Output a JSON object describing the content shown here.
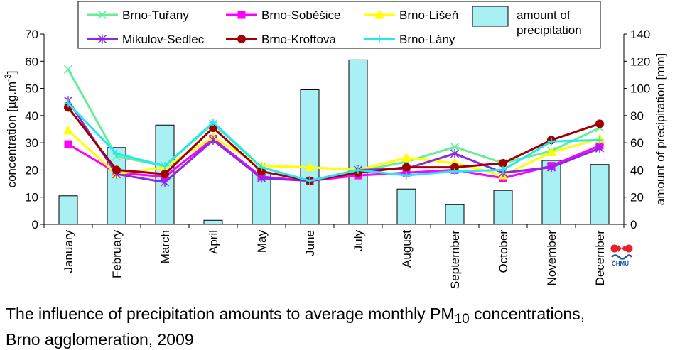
{
  "chart_data": {
    "type": "line",
    "categories": [
      "January",
      "February",
      "March",
      "April",
      "May",
      "June",
      "July",
      "August",
      "September",
      "October",
      "November",
      "December"
    ],
    "ylabel": "concentration  [µg.m-3]",
    "ylabel_parts": [
      "concentration  [µg.m",
      "-3",
      "]"
    ],
    "y2label": "amount of precipitation [mm]",
    "ylim": [
      0,
      70
    ],
    "y2lim": [
      0,
      140
    ],
    "yticks": [
      0,
      10,
      20,
      30,
      40,
      50,
      60,
      70
    ],
    "y2ticks": [
      0,
      20,
      40,
      60,
      80,
      100,
      120,
      140
    ],
    "bars": {
      "name": "amount of precipitation",
      "name_lines": [
        "amount of",
        "precipitation"
      ],
      "color": "#a8f0f4",
      "values": [
        21,
        56.5,
        73,
        3,
        38,
        99,
        121,
        26,
        14.5,
        25,
        47,
        44
      ]
    },
    "series": [
      {
        "name": "Brno-Tuřany",
        "color": "#66ee99",
        "marker": "x",
        "values": [
          57,
          25,
          21.5,
          37,
          21,
          16,
          19.5,
          23,
          28.5,
          22.5,
          27,
          35.5
        ]
      },
      {
        "name": "Brno-Soběšice",
        "color": "#ff00ff",
        "marker": "square",
        "values": [
          29.5,
          19,
          17.5,
          31.5,
          17.5,
          16,
          18,
          19,
          20,
          17,
          21.5,
          29
        ]
      },
      {
        "name": "Brno-Líšeň",
        "color": "#ffff00",
        "marker": "triangle",
        "values": [
          34.5,
          18.5,
          21,
          32,
          21.5,
          21,
          20,
          24.5,
          22.5,
          18,
          26.5,
          31.5
        ]
      },
      {
        "name": "Mikulov-Sedlec",
        "color": "#8a2be2",
        "marker": "star",
        "values": [
          45.5,
          18.5,
          15.5,
          31,
          17,
          16,
          20,
          20.5,
          26,
          19,
          21,
          28
        ]
      },
      {
        "name": "Brno-Kroftova",
        "color": "#a00000",
        "marker": "circle",
        "values": [
          43,
          20,
          18.5,
          35.5,
          19.5,
          16,
          19,
          21,
          21,
          22.5,
          31,
          37
        ]
      },
      {
        "name": "Brno-Lány",
        "color": "#22e8f2",
        "marker": "plus",
        "values": [
          44.5,
          26,
          21.5,
          37.5,
          21,
          16,
          20,
          18,
          19.5,
          20,
          30.5,
          31
        ]
      }
    ],
    "legend": "top",
    "grid": false
  },
  "caption": {
    "line1_before": "The influence of precipitation amounts to average monthly PM",
    "line1_sub": "10",
    "line1_after": " concentrations,",
    "line2": "Brno agglomeration, 2009"
  },
  "logo": {
    "text": "ČHMÚ"
  }
}
